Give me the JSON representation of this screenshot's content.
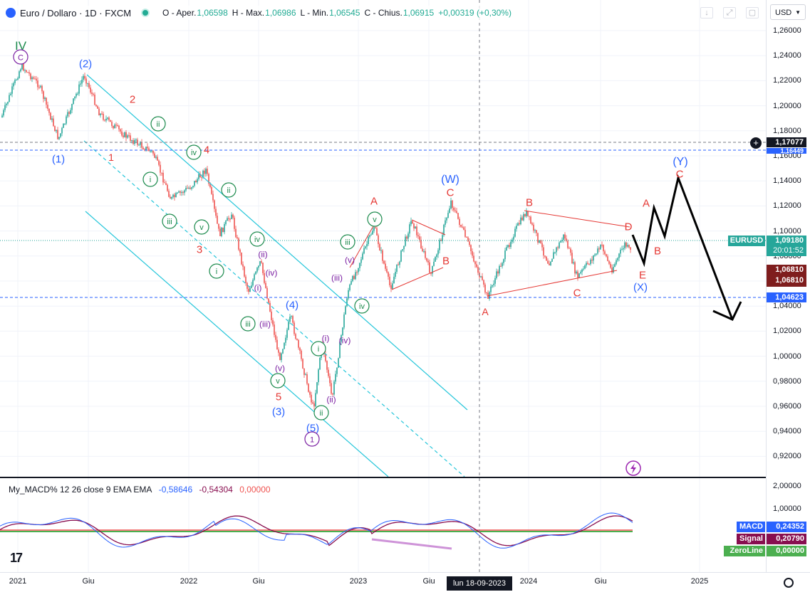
{
  "header": {
    "symbol": "Euro / Dollaro · 1D · FXCM",
    "open_label": "O - Aper.",
    "open": "1,06598",
    "high_label": "H - Max.",
    "high": "1,06986",
    "low_label": "L - Min.",
    "low": "1,06545",
    "close_label": "C - Chius.",
    "close": "1,06915",
    "change": "+0,00319 (+0,30%)"
  },
  "currency": "USD",
  "price_ticks": [
    "1,26000",
    "1,24000",
    "1,22000",
    "1,20000",
    "1,18000",
    "1,16000",
    "1,14000",
    "1,12000",
    "1,10000",
    "1,08000",
    "1,06000",
    "1,04000",
    "1,02000",
    "1,00000",
    "0,98000",
    "0,96000",
    "0,94000",
    "0,92000"
  ],
  "price_labels": {
    "level_high": "1,17077",
    "level_high2": "1,16449",
    "symbol_tag": "EURUSD",
    "current": "1,09180",
    "countdown": "20:01:52",
    "crosshair1": "1,06810",
    "crosshair2": "1,06810",
    "level_low": "1,04623"
  },
  "macd": {
    "title": "My_MACD% 12 26 close 9 EMA EMA",
    "v1": "-0,58646",
    "v2": "-0,54304",
    "v3": "0,00000",
    "ticks": [
      "2,00000",
      "1,00000"
    ],
    "macd_label": "MACD",
    "macd_value": "0,24352",
    "signal_label": "Signal",
    "signal_value": "0,20790",
    "zero_label": "ZeroLine",
    "zero_value": "0,00000"
  },
  "time_axis": {
    "labels": [
      "2021",
      "Giu",
      "2022",
      "Giu",
      "2023",
      "Giu",
      "2024",
      "Giu",
      "2025"
    ],
    "crosshair_date": "lun 18-09-2023"
  },
  "wave_labels": {
    "iv_big": "IV",
    "c_circle": "C",
    "w2": "(2)",
    "w1": "(1)",
    "r2": "2",
    "r1": "1",
    "r4": "4",
    "r3": "3",
    "ii": "ii",
    "iv": "iv",
    "i": "i",
    "iii": "iii",
    "v": "v",
    "p_iv": "iv",
    "p_ii": "(ii)",
    "p_i": "(i)",
    "p_iv2": "(iv)",
    "p_iii": "(iii)",
    "p_v": "(v)",
    "w4": "(4)",
    "w3": "(3)",
    "w5": "(5)",
    "r5": "5",
    "one_circle": "1",
    "A1": "A",
    "W": "(W)",
    "C1": "C",
    "B1": "B",
    "A2": "A",
    "B2": "B",
    "C2": "C",
    "D": "D",
    "E": "E",
    "X": "(X)",
    "Y": "(Y)",
    "C3": "C",
    "A3": "A",
    "B3": "B"
  },
  "colors": {
    "up": "#26a69a",
    "down": "#ef5350",
    "channel": "#26c6da",
    "wave_red": "#e53935",
    "wave_blue": "#2962ff",
    "wave_green": "#1b8a4c",
    "wave_purple": "#7b1fa2",
    "macd_line": "#2962ff",
    "signal_line": "#880e4f",
    "zero_line": "#4caf50"
  }
}
